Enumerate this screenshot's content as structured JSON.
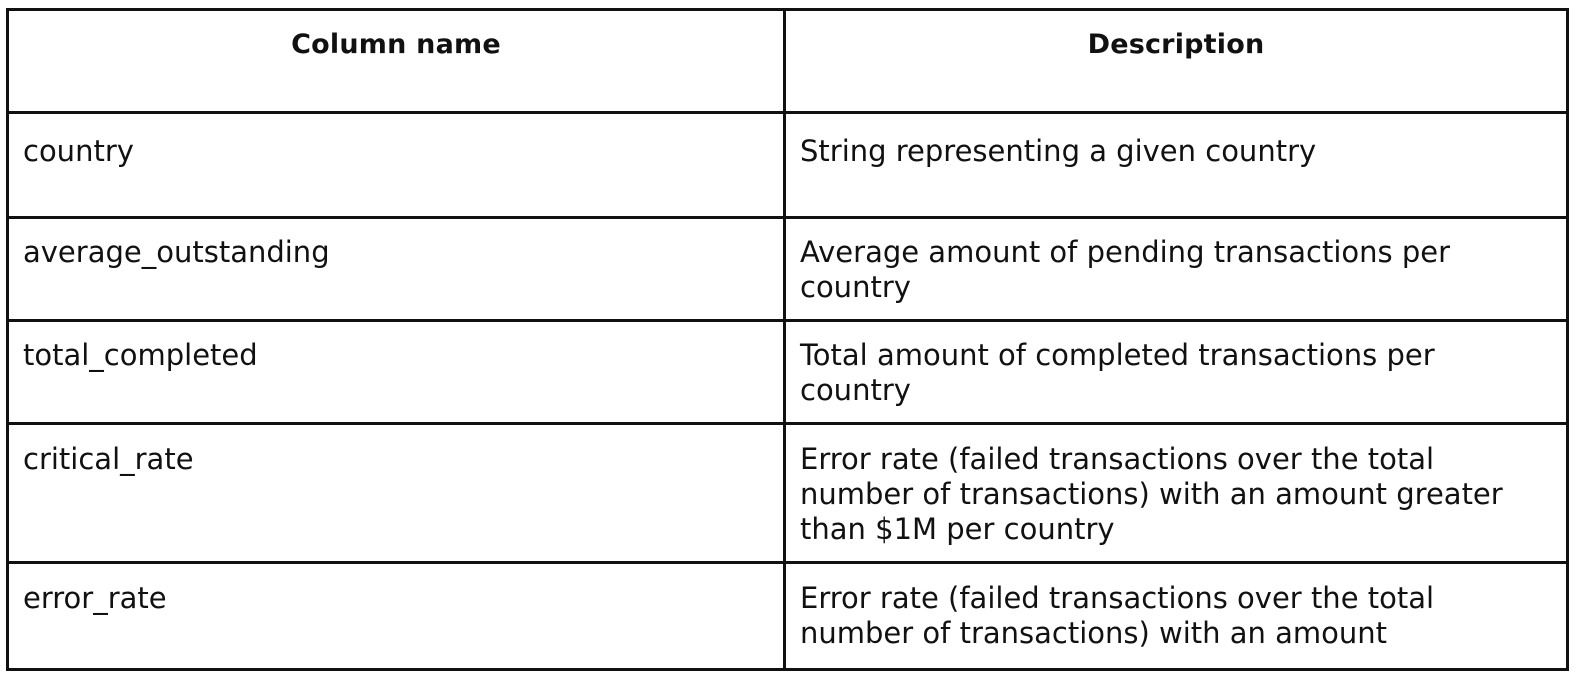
{
  "table": {
    "headers": {
      "column_name": "Column name",
      "description": "Description"
    },
    "rows": [
      {
        "name": "country",
        "description": "String representing a given country"
      },
      {
        "name": "average_outstanding",
        "description": "Average amount of pending transactions per country"
      },
      {
        "name": "total_completed",
        "description": "Total amount of completed transactions per country"
      },
      {
        "name": "critical_rate",
        "description": " Error rate (failed transactions over the total number of transactions) with an amount greater than $1M per country"
      },
      {
        "name": "error_rate",
        "description": " Error rate (failed transactions over the total number of transactions) with an amount"
      }
    ]
  }
}
